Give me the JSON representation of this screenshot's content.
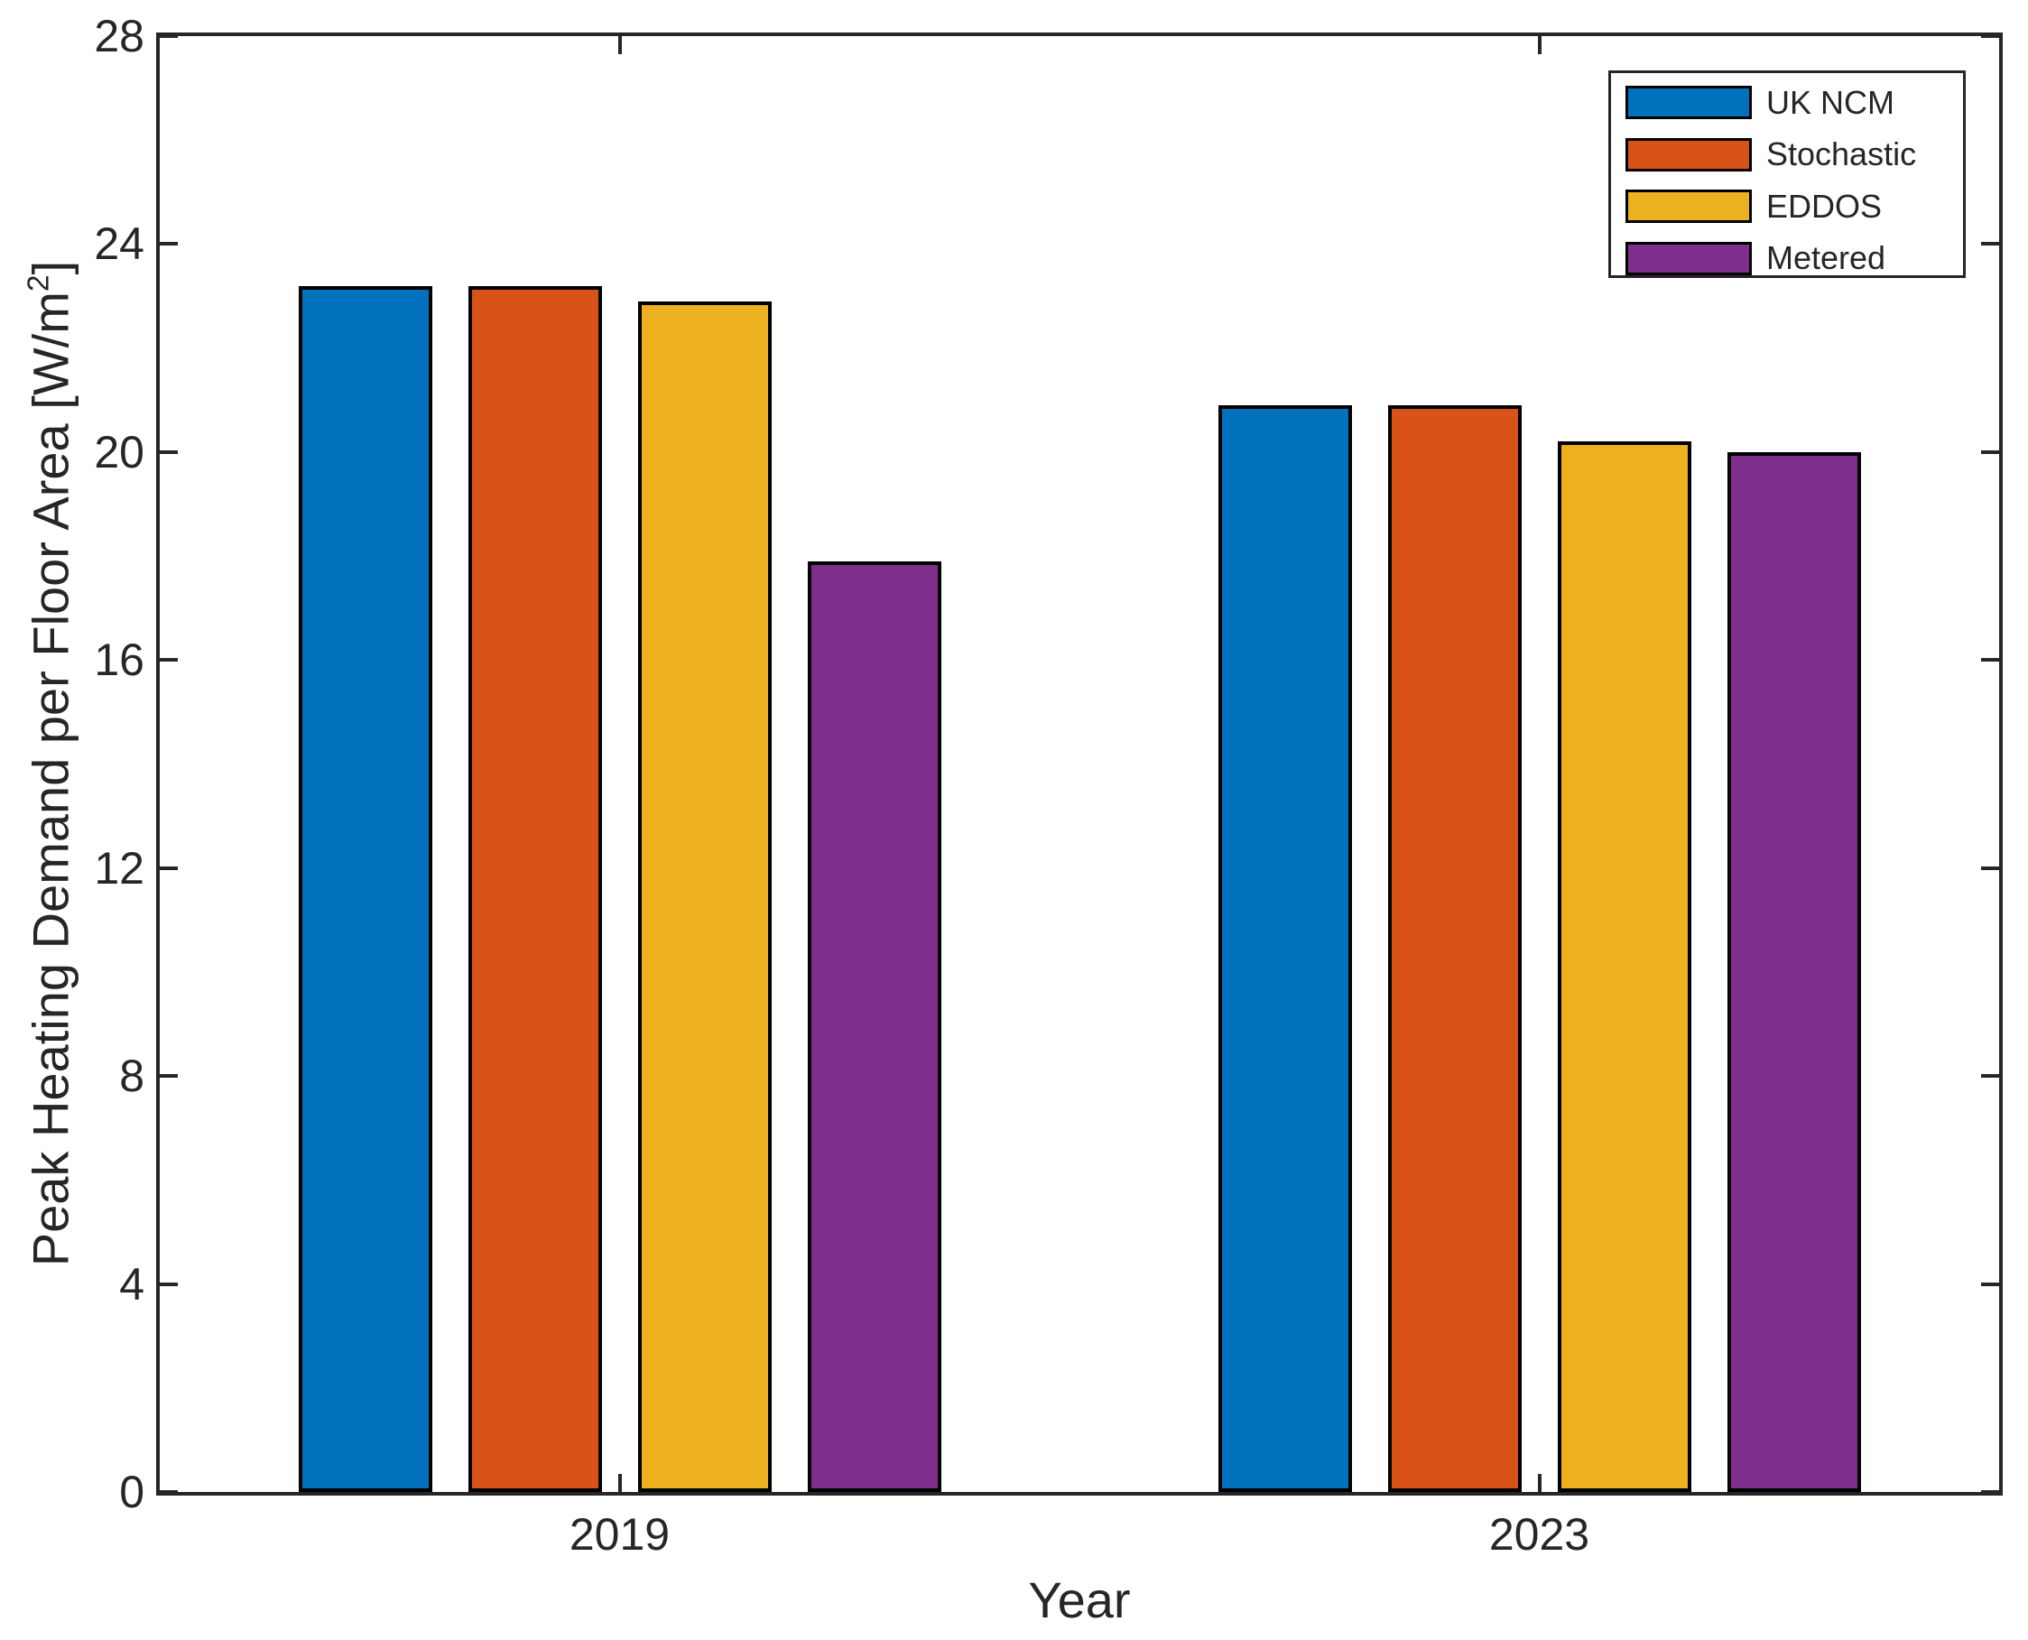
{
  "chart_data": {
    "type": "bar",
    "title": "",
    "xlabel": "Year",
    "ylabel": "Peak Heating Demand per Floor Area [W/m2]",
    "ylabel_parts": {
      "prefix": "Peak Heating Demand per Floor Area [W/m",
      "sup": "2",
      "suffix": "]"
    },
    "categories": [
      "2019",
      "2023"
    ],
    "series": [
      {
        "name": "UK NCM",
        "color": "#0072BD",
        "values": [
          23.2,
          20.9
        ]
      },
      {
        "name": "Stochastic",
        "color": "#D95319",
        "values": [
          23.2,
          20.9
        ]
      },
      {
        "name": "EDDOS",
        "color": "#EDB120",
        "values": [
          22.9,
          20.2
        ]
      },
      {
        "name": "Metered",
        "color": "#7E2F8E",
        "values": [
          17.9,
          20.0
        ]
      }
    ],
    "ylim": [
      0,
      28
    ],
    "yticks": [
      0,
      4,
      8,
      12,
      16,
      20,
      24,
      28
    ],
    "grid": false,
    "legend_position": "top-right",
    "bar_edge_color": "#000000",
    "axis_color": "#262626",
    "background_color": "#FFFFFF"
  }
}
